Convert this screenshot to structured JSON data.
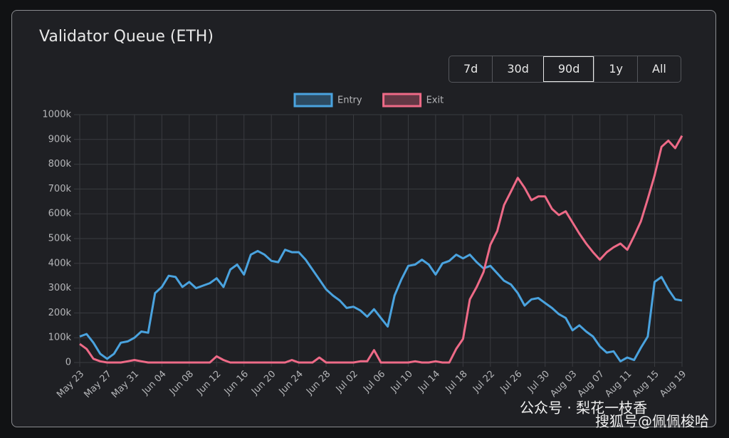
{
  "chart_data": {
    "type": "line",
    "title": "Validator Queue (ETH)",
    "ranges": [
      "7d",
      "30d",
      "90d",
      "1y",
      "All"
    ],
    "selected_range": 2,
    "categories": [
      "May 23",
      null,
      null,
      null,
      "May 27",
      null,
      null,
      null,
      "May 31",
      null,
      null,
      null,
      "Jun 04",
      null,
      null,
      null,
      "Jun 08",
      null,
      null,
      null,
      "Jun 12",
      null,
      null,
      null,
      "Jun 16",
      null,
      null,
      null,
      "Jun 20",
      null,
      null,
      null,
      "Jun 24",
      null,
      null,
      null,
      "Jun 28",
      null,
      null,
      null,
      "Jul 02",
      null,
      null,
      null,
      "Jul 06",
      null,
      null,
      null,
      "Jul 10",
      null,
      null,
      null,
      "Jul 14",
      null,
      null,
      null,
      "Jul 18",
      null,
      null,
      null,
      "Jul 22",
      null,
      null,
      null,
      "Jul 26",
      null,
      null,
      null,
      "Jul 30",
      null,
      null,
      null,
      "Aug 03",
      null,
      null,
      null,
      "Aug 07",
      null,
      null,
      null,
      "Aug 11",
      null,
      null,
      null,
      "Aug 15",
      null,
      null,
      null,
      "Aug 19"
    ],
    "series": [
      {
        "name": "Entry",
        "color": "#4aa3df",
        "values": [
          105,
          115,
          80,
          35,
          15,
          35,
          80,
          85,
          100,
          125,
          120,
          280,
          305,
          350,
          345,
          305,
          325,
          300,
          310,
          320,
          340,
          305,
          375,
          395,
          355,
          435,
          450,
          435,
          410,
          405,
          455,
          445,
          445,
          415,
          375,
          335,
          295,
          270,
          250,
          220,
          225,
          210,
          185,
          215,
          180,
          145,
          270,
          335,
          390,
          395,
          415,
          395,
          355,
          400,
          410,
          435,
          420,
          435,
          405,
          380,
          390,
          360,
          330,
          315,
          280,
          230,
          255,
          260,
          240,
          220,
          195,
          180,
          130,
          150,
          125,
          105,
          65,
          40,
          45,
          5,
          20,
          10,
          60,
          105,
          325,
          345,
          295,
          255,
          250
        ]
      },
      {
        "name": "Exit",
        "color": "#ee6a87",
        "values": [
          75,
          55,
          15,
          5,
          0,
          0,
          0,
          5,
          10,
          5,
          0,
          0,
          0,
          0,
          0,
          0,
          0,
          0,
          0,
          0,
          25,
          10,
          0,
          0,
          0,
          0,
          0,
          0,
          0,
          0,
          0,
          10,
          0,
          0,
          0,
          20,
          0,
          0,
          0,
          0,
          0,
          5,
          5,
          50,
          0,
          0,
          0,
          0,
          0,
          5,
          0,
          0,
          5,
          0,
          0,
          55,
          95,
          255,
          305,
          365,
          475,
          530,
          635,
          690,
          745,
          705,
          655,
          670,
          670,
          620,
          595,
          610,
          565,
          520,
          480,
          445,
          415,
          445,
          465,
          480,
          455,
          510,
          570,
          660,
          755,
          870,
          895,
          865,
          915
        ]
      }
    ],
    "ylim": [
      0,
      1000
    ],
    "yticks": [
      0,
      {
        "value": 100,
        "label": "100k"
      },
      {
        "value": 200,
        "label": "200k"
      },
      {
        "value": 300,
        "label": "300k"
      },
      {
        "value": 400,
        "label": "400k"
      },
      {
        "value": 500,
        "label": "500k"
      },
      {
        "value": 600,
        "label": "600k"
      },
      {
        "value": 700,
        "label": "700k"
      },
      {
        "value": 800,
        "label": "800k"
      },
      {
        "value": 900,
        "label": "900k"
      },
      {
        "value": 1000,
        "label": "1000k"
      }
    ],
    "grid": true
  },
  "watermarks": [
    "公众号 · 梨花一枝香",
    "搜狐号@佩佩梭哈"
  ]
}
